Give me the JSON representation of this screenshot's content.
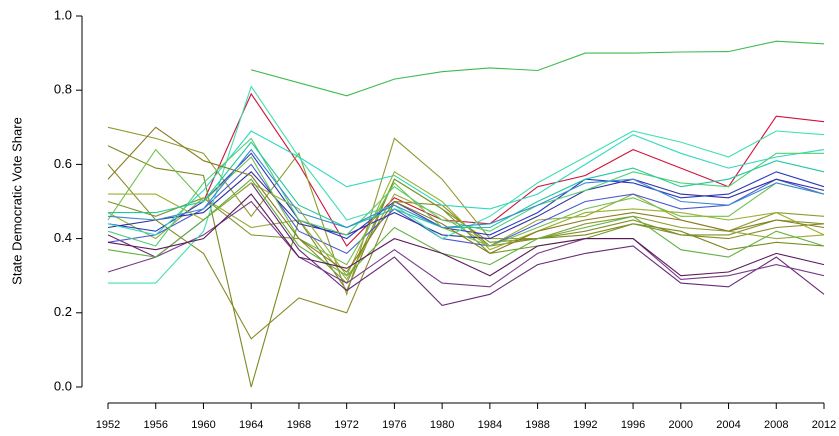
{
  "chart_data": {
    "type": "line",
    "ylabel": "State Democratic Vote Share",
    "x": [
      1952,
      1956,
      1960,
      1964,
      1968,
      1972,
      1976,
      1980,
      1984,
      1988,
      1992,
      1996,
      2000,
      2004,
      2008,
      2012
    ],
    "xlim": [
      1952,
      2012
    ],
    "xticks": [
      1952,
      1956,
      1960,
      1964,
      1968,
      1972,
      1976,
      1980,
      1984,
      1988,
      1992,
      1996,
      2000,
      2004,
      2008,
      2012
    ],
    "ylim": [
      0,
      1
    ],
    "yticks": [
      {
        "value": 0,
        "label": "0.0"
      },
      0.2,
      0.4,
      0.6,
      0.8,
      {
        "value": 1,
        "label": "1.0"
      }
    ],
    "series": [
      {
        "color": "#3dbb50",
        "values": [
          null,
          null,
          null,
          0.855,
          0.82,
          0.785,
          0.83,
          0.85,
          0.86,
          0.853,
          0.9,
          0.9,
          0.903,
          0.904,
          0.932,
          0.925
        ]
      },
      {
        "color": "#d0103a",
        "values": [
          null,
          null,
          0.5,
          0.79,
          0.6,
          0.38,
          0.51,
          0.45,
          0.44,
          0.54,
          0.57,
          0.64,
          0.59,
          0.54,
          0.73,
          0.715
        ]
      },
      {
        "color": "#8a8a2a",
        "values": [
          0.6,
          0.45,
          0.36,
          0.13,
          0.24,
          0.2,
          0.5,
          0.49,
          0.38,
          0.4,
          0.42,
          0.45,
          0.41,
          0.4,
          0.43,
          0.44
        ]
      },
      {
        "color": "#7a8a20",
        "values": [
          0.65,
          0.59,
          0.57,
          0.0,
          0.45,
          0.26,
          0.56,
          0.48,
          0.39,
          0.4,
          0.41,
          0.44,
          0.42,
          0.37,
          0.39,
          0.38
        ]
      },
      {
        "color": "#8f9a30",
        "values": [
          0.7,
          0.67,
          0.63,
          0.46,
          0.63,
          0.25,
          0.67,
          0.56,
          0.4,
          0.4,
          0.44,
          0.46,
          0.43,
          0.42,
          0.47,
          0.46
        ]
      },
      {
        "color": "#7a9528",
        "values": [
          0.5,
          0.46,
          0.51,
          0.41,
          0.4,
          0.28,
          0.56,
          0.48,
          0.36,
          0.38,
          0.4,
          0.44,
          0.41,
          0.41,
          0.45,
          0.44
        ]
      },
      {
        "color": "#9aaa3a",
        "values": [
          0.47,
          0.4,
          0.51,
          0.43,
          0.45,
          0.29,
          0.52,
          0.46,
          0.38,
          0.45,
          0.46,
          0.52,
          0.45,
          0.42,
          0.4,
          0.41
        ]
      },
      {
        "color": "#6a2a7a",
        "values": [
          0.41,
          0.35,
          0.45,
          0.55,
          0.37,
          0.26,
          0.35,
          0.22,
          0.25,
          0.33,
          0.36,
          0.38,
          0.28,
          0.27,
          0.35,
          0.25
        ]
      },
      {
        "color": "#7a3a8a",
        "values": [
          0.31,
          0.35,
          0.41,
          0.5,
          0.35,
          0.28,
          0.37,
          0.28,
          0.27,
          0.36,
          0.4,
          0.4,
          0.29,
          0.3,
          0.33,
          0.3
        ]
      },
      {
        "color": "#2a3ac0",
        "values": [
          0.44,
          0.42,
          0.5,
          0.63,
          0.45,
          0.4,
          0.5,
          0.43,
          0.41,
          0.47,
          0.56,
          0.55,
          0.51,
          0.52,
          0.58,
          0.54
        ]
      },
      {
        "color": "#4a5ad0",
        "values": [
          0.39,
          0.41,
          0.48,
          0.6,
          0.42,
          0.36,
          0.48,
          0.4,
          0.38,
          0.44,
          0.5,
          0.52,
          0.48,
          0.49,
          0.56,
          0.52
        ]
      },
      {
        "color": "#3030a0",
        "values": [
          0.43,
          0.45,
          0.47,
          0.58,
          0.44,
          0.41,
          0.47,
          0.41,
          0.4,
          0.46,
          0.53,
          0.56,
          0.52,
          0.51,
          0.56,
          0.53
        ]
      },
      {
        "color": "#40e0b0",
        "values": [
          0.28,
          0.28,
          0.42,
          0.81,
          0.62,
          0.45,
          0.49,
          0.4,
          0.46,
          0.55,
          0.62,
          0.69,
          0.66,
          0.62,
          0.69,
          0.68
        ]
      },
      {
        "color": "#30d8c0",
        "values": [
          0.44,
          0.41,
          0.53,
          0.69,
          0.62,
          0.54,
          0.57,
          0.49,
          0.48,
          0.52,
          0.6,
          0.68,
          0.63,
          0.59,
          0.62,
          0.64
        ]
      },
      {
        "color": "#50d070",
        "values": [
          0.42,
          0.38,
          0.55,
          0.67,
          0.45,
          0.41,
          0.54,
          0.45,
          0.42,
          0.49,
          0.53,
          0.58,
          0.55,
          0.54,
          0.63,
          0.63
        ]
      },
      {
        "color": "#70c050",
        "values": [
          0.45,
          0.64,
          0.5,
          0.62,
          0.4,
          0.33,
          0.55,
          0.43,
          0.38,
          0.43,
          0.48,
          0.51,
          0.46,
          0.46,
          0.55,
          0.52
        ]
      },
      {
        "color": "#9ab030",
        "values": [
          0.52,
          0.52,
          0.45,
          0.55,
          0.48,
          0.3,
          0.58,
          0.5,
          0.37,
          0.42,
          0.47,
          0.48,
          0.47,
          0.45,
          0.47,
          0.41
        ]
      },
      {
        "color": "#20c8a0",
        "values": [
          0.47,
          0.47,
          0.5,
          0.66,
          0.49,
          0.43,
          0.48,
          0.43,
          0.43,
          0.5,
          0.56,
          0.59,
          0.54,
          0.56,
          0.61,
          0.58
        ]
      },
      {
        "color": "#8a7a20",
        "values": [
          0.56,
          0.7,
          0.61,
          0.57,
          0.4,
          0.31,
          0.5,
          0.44,
          0.36,
          0.42,
          0.45,
          0.47,
          0.45,
          0.42,
          0.45,
          0.43
        ]
      },
      {
        "color": "#60b040",
        "values": [
          0.37,
          0.35,
          0.45,
          0.56,
          0.38,
          0.3,
          0.43,
          0.36,
          0.33,
          0.4,
          0.43,
          0.46,
          0.37,
          0.35,
          0.42,
          0.38
        ]
      },
      {
        "color": "#5a1a5a",
        "values": [
          0.39,
          0.37,
          0.4,
          0.52,
          0.35,
          0.32,
          0.4,
          0.36,
          0.3,
          0.38,
          0.4,
          0.4,
          0.3,
          0.31,
          0.36,
          0.33
        ]
      },
      {
        "color": "#3a8ad0",
        "values": [
          0.46,
          0.45,
          0.48,
          0.64,
          0.47,
          0.43,
          0.49,
          0.43,
          0.44,
          0.49,
          0.55,
          0.56,
          0.5,
          0.49,
          0.55,
          0.52
        ]
      }
    ]
  }
}
